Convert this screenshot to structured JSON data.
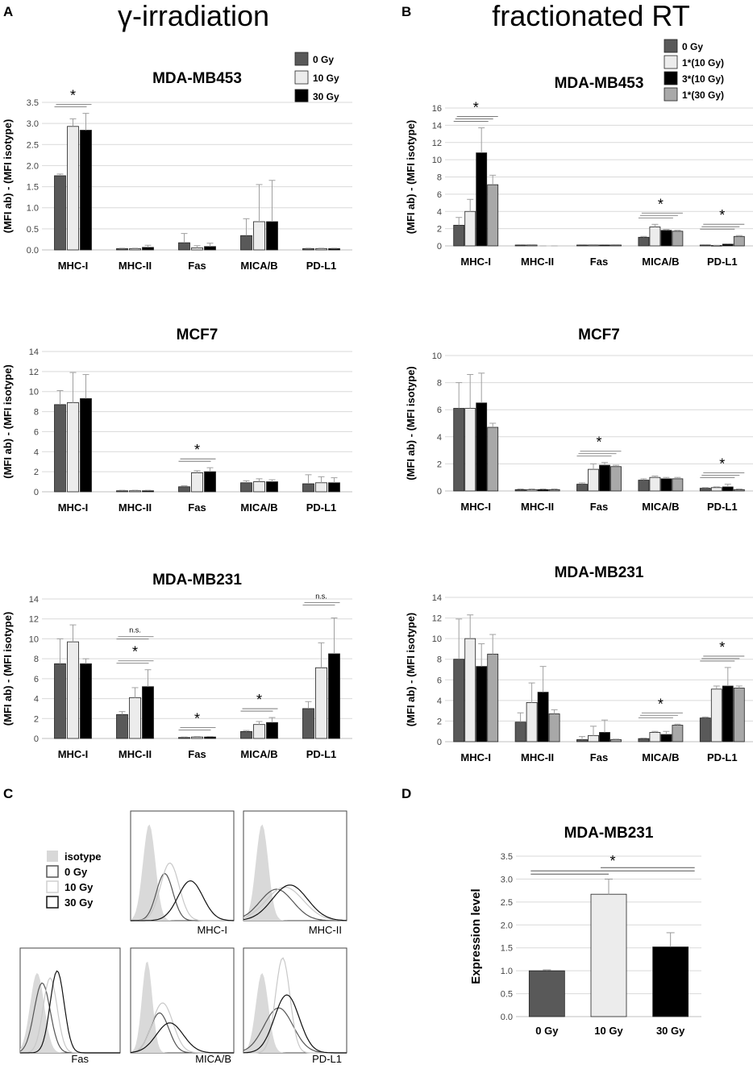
{
  "figure": {
    "panel_letters": [
      "A",
      "B",
      "C",
      "D"
    ],
    "column_titles": {
      "A": "γ-irradiation",
      "B": "fractionated RT"
    }
  },
  "colors": {
    "0Gy": "#595959",
    "10Gy": "#ececec",
    "30Gy": "#000000",
    "1x30Gy": "#a8a8a8",
    "grid": "#d9d9d9"
  },
  "legends": {
    "A": [
      "0 Gy",
      "10 Gy",
      "30 Gy"
    ],
    "B": [
      "0 Gy",
      "1*(10 Gy)",
      "3*(10 Gy)",
      "1*(30 Gy)"
    ],
    "C": [
      "isotype",
      "0 Gy",
      "10 Gy",
      "30 Gy"
    ]
  },
  "chart_data": [
    {
      "id": "A1",
      "type": "bar",
      "title": "MDA-MB453",
      "ylabel": "(MFI ab) - (MFI isotype)",
      "ylim": [
        0,
        3.5
      ],
      "ytick_step": 0.5,
      "ytick_decimals": 1,
      "categories": [
        "MHC-I",
        "MHC-II",
        "Fas",
        "MICA/B",
        "PD-L1"
      ],
      "series": [
        {
          "name": "0 Gy",
          "values": [
            1.76,
            0.03,
            0.17,
            0.34,
            0.03
          ],
          "errors": [
            0.04,
            0.01,
            0.22,
            0.4,
            0.01
          ]
        },
        {
          "name": "10 Gy",
          "values": [
            2.93,
            0.03,
            0.05,
            0.67,
            0.03
          ],
          "errors": [
            0.18,
            0.01,
            0.05,
            0.88,
            0.01
          ]
        },
        {
          "name": "30 Gy",
          "values": [
            2.84,
            0.06,
            0.08,
            0.67,
            0.03
          ],
          "errors": [
            0.4,
            0.05,
            0.08,
            0.98,
            0.01
          ]
        }
      ],
      "annotations": [
        {
          "label": "*",
          "category": "MHC-I"
        }
      ]
    },
    {
      "id": "A2",
      "type": "bar",
      "title": "MCF7",
      "ylabel": "(MFI ab) - (MFI isotype)",
      "ylim": [
        0,
        14
      ],
      "ytick_step": 2,
      "ytick_decimals": 0,
      "categories": [
        "MHC-I",
        "MHC-II",
        "Fas",
        "MICA/B",
        "PD-L1"
      ],
      "series": [
        {
          "name": "0 Gy",
          "values": [
            8.7,
            0.1,
            0.5,
            0.9,
            0.8
          ],
          "errors": [
            1.4,
            0.05,
            0.1,
            0.2,
            0.9
          ]
        },
        {
          "name": "10 Gy",
          "values": [
            8.9,
            0.1,
            1.9,
            1.0,
            0.9
          ],
          "errors": [
            3.0,
            0.05,
            0.2,
            0.3,
            0.6
          ]
        },
        {
          "name": "30 Gy",
          "values": [
            9.3,
            0.1,
            2.0,
            1.0,
            0.9
          ],
          "errors": [
            2.4,
            0.05,
            0.4,
            0.2,
            0.5
          ]
        }
      ],
      "annotations": [
        {
          "label": "*",
          "category": "Fas"
        }
      ]
    },
    {
      "id": "A3",
      "type": "bar",
      "title": "MDA-MB231",
      "ylabel": "(MFI ab) - (MFI isotype)",
      "ylim": [
        0,
        14
      ],
      "ytick_step": 2,
      "ytick_decimals": 0,
      "categories": [
        "MHC-I",
        "MHC-II",
        "Fas",
        "MICA/B",
        "PD-L1"
      ],
      "series": [
        {
          "name": "0 Gy",
          "values": [
            7.5,
            2.4,
            0.1,
            0.7,
            3.0
          ],
          "errors": [
            2.5,
            0.3,
            0.05,
            0.1,
            0.7
          ]
        },
        {
          "name": "10 Gy",
          "values": [
            9.7,
            4.1,
            0.15,
            1.4,
            7.1
          ],
          "errors": [
            1.7,
            1.0,
            0.05,
            0.3,
            2.5
          ]
        },
        {
          "name": "30 Gy",
          "values": [
            7.5,
            5.2,
            0.15,
            1.6,
            8.5
          ],
          "errors": [
            0.5,
            1.7,
            0.05,
            0.5,
            3.6
          ]
        }
      ],
      "annotations": [
        {
          "label": "*",
          "category": "MHC-II"
        },
        {
          "label": "n.s.",
          "category": "MHC-II"
        },
        {
          "label": "*",
          "category": "Fas"
        },
        {
          "label": "*",
          "category": "MICA/B"
        },
        {
          "label": "n.s.",
          "category": "PD-L1"
        }
      ]
    },
    {
      "id": "B1",
      "type": "bar",
      "title": "MDA-MB453",
      "ylabel": "(MFI ab) - (MFI isotype)",
      "ylim": [
        0,
        16
      ],
      "ytick_step": 2,
      "ytick_decimals": 0,
      "categories": [
        "MHC-I",
        "MHC-II",
        "Fas",
        "MICA/B",
        "PD-L1"
      ],
      "series": [
        {
          "name": "0 Gy",
          "values": [
            2.4,
            0.1,
            0.1,
            1.0,
            0.1
          ],
          "errors": [
            0.9,
            0.05,
            0.05,
            0.1,
            0.05
          ]
        },
        {
          "name": "1*(10 Gy)",
          "values": [
            4.0,
            0.1,
            0.1,
            2.2,
            0.05
          ],
          "errors": [
            1.4,
            0.05,
            0.05,
            0.3,
            0.02
          ]
        },
        {
          "name": "3*(10 Gy)",
          "values": [
            10.8,
            0.0,
            0.1,
            1.8,
            0.2
          ],
          "errors": [
            2.9,
            0.0,
            0.05,
            0.1,
            0.05
          ]
        },
        {
          "name": "1*(30 Gy)",
          "values": [
            7.1,
            0.0,
            0.1,
            1.7,
            1.1
          ],
          "errors": [
            1.1,
            0.0,
            0.05,
            0.1,
            0.1
          ]
        }
      ],
      "annotations": [
        {
          "label": "*",
          "category": "MHC-I"
        },
        {
          "label": "*",
          "category": "MICA/B"
        },
        {
          "label": "*",
          "category": "PD-L1"
        }
      ]
    },
    {
      "id": "B2",
      "type": "bar",
      "title": "MCF7",
      "ylabel": "(MFI ab) - (MFI isotype)",
      "ylim": [
        0,
        10
      ],
      "ytick_step": 2,
      "ytick_decimals": 0,
      "categories": [
        "MHC-I",
        "MHC-II",
        "Fas",
        "MICA/B",
        "PD-L1"
      ],
      "series": [
        {
          "name": "0 Gy",
          "values": [
            6.1,
            0.1,
            0.5,
            0.8,
            0.2
          ],
          "errors": [
            1.9,
            0.05,
            0.1,
            0.1,
            0.05
          ]
        },
        {
          "name": "1*(10 Gy)",
          "values": [
            6.1,
            0.1,
            1.6,
            1.0,
            0.25
          ],
          "errors": [
            2.5,
            0.05,
            0.4,
            0.1,
            0.05
          ]
        },
        {
          "name": "3*(10 Gy)",
          "values": [
            6.5,
            0.1,
            1.9,
            0.9,
            0.3
          ],
          "errors": [
            2.2,
            0.05,
            0.2,
            0.1,
            0.2
          ]
        },
        {
          "name": "1*(30 Gy)",
          "values": [
            4.7,
            0.1,
            1.8,
            0.9,
            0.1
          ],
          "errors": [
            0.3,
            0.05,
            0.1,
            0.1,
            0.05
          ]
        }
      ],
      "annotations": [
        {
          "label": "*",
          "category": "Fas"
        },
        {
          "label": "*",
          "category": "PD-L1"
        }
      ]
    },
    {
      "id": "B3",
      "type": "bar",
      "title": "MDA-MB231",
      "ylabel": "(MFI ab) - (MFI isotype)",
      "ylim": [
        0,
        14
      ],
      "ytick_step": 2,
      "ytick_decimals": 0,
      "categories": [
        "MHC-I",
        "MHC-II",
        "Fas",
        "MICA/B",
        "PD-L1"
      ],
      "series": [
        {
          "name": "0 Gy",
          "values": [
            8.0,
            1.9,
            0.2,
            0.3,
            2.3
          ],
          "errors": [
            3.9,
            0.9,
            0.3,
            0.05,
            0.1
          ]
        },
        {
          "name": "1*(10 Gy)",
          "values": [
            10.0,
            3.8,
            0.6,
            0.9,
            5.1
          ],
          "errors": [
            2.3,
            1.9,
            0.9,
            0.1,
            0.3
          ]
        },
        {
          "name": "3*(10 Gy)",
          "values": [
            7.3,
            4.8,
            0.9,
            0.7,
            5.4
          ],
          "errors": [
            2.2,
            2.5,
            1.2,
            0.3,
            1.8
          ]
        },
        {
          "name": "1*(30 Gy)",
          "values": [
            8.5,
            2.7,
            0.2,
            1.6,
            5.2
          ],
          "errors": [
            1.9,
            0.4,
            0.05,
            0.1,
            0.2
          ]
        }
      ],
      "annotations": [
        {
          "label": "*",
          "category": "MICA/B"
        },
        {
          "label": "*",
          "category": "PD-L1"
        }
      ]
    },
    {
      "id": "D",
      "type": "bar",
      "title": "MDA-MB231",
      "ylabel": "Expression level",
      "ylim": [
        0,
        3.5
      ],
      "ytick_step": 0.5,
      "ytick_decimals": 1,
      "categories": [
        "0 Gy",
        "10 Gy",
        "30 Gy"
      ],
      "values": [
        1.0,
        2.67,
        1.52
      ],
      "errors": [
        0.02,
        0.33,
        0.31
      ],
      "annotations": [
        {
          "label": "*",
          "category": "all"
        }
      ]
    }
  ],
  "histograms": {
    "type": "histogram-overlay",
    "panels": [
      "MHC-I",
      "MHC-II",
      "Fas",
      "MICA/B",
      "PD-L1"
    ]
  }
}
